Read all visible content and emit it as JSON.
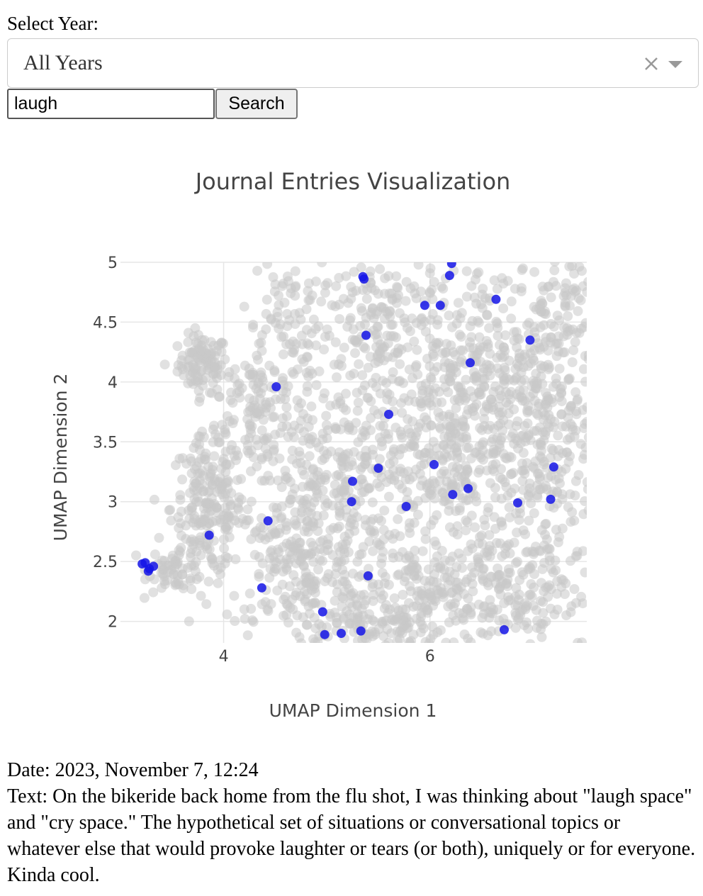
{
  "controls": {
    "year_label": "Select Year:",
    "year_selected": "All Years",
    "search_value": "laugh",
    "search_button_label": "Search"
  },
  "colors": {
    "background_points": "#c8c8c8",
    "highlight_points": "#1414e6",
    "grid": "#e6e6e6"
  },
  "chart_data": {
    "type": "scatter",
    "title": "Journal Entries Visualization",
    "xlabel": "UMAP Dimension 1",
    "ylabel": "UMAP Dimension 2",
    "xlim": [
      3.0,
      7.52
    ],
    "ylim": [
      1.82,
      5.0
    ],
    "xticks": [
      4,
      6
    ],
    "yticks": [
      2,
      2.5,
      3,
      3.5,
      4,
      4.5,
      5
    ],
    "grid": true,
    "background_series": {
      "name": "",
      "clusters": [
        {
          "cx": 3.8,
          "cy": 4.15,
          "sx": 0.12,
          "sy": 0.12,
          "n": 100
        },
        {
          "cx": 4.3,
          "cy": 3.8,
          "sx": 0.25,
          "sy": 0.3,
          "n": 140
        },
        {
          "cx": 3.85,
          "cy": 2.95,
          "sx": 0.18,
          "sy": 0.28,
          "n": 200
        },
        {
          "cx": 3.55,
          "cy": 2.45,
          "sx": 0.14,
          "sy": 0.1,
          "n": 60
        },
        {
          "cx": 4.7,
          "cy": 2.5,
          "sx": 0.35,
          "sy": 0.3,
          "n": 220
        },
        {
          "cx": 4.6,
          "cy": 4.55,
          "sx": 0.22,
          "sy": 0.25,
          "n": 80
        },
        {
          "cx": 5.05,
          "cy": 3.2,
          "sx": 0.35,
          "sy": 0.4,
          "n": 240
        },
        {
          "cx": 5.6,
          "cy": 4.4,
          "sx": 0.35,
          "sy": 0.35,
          "n": 220
        },
        {
          "cx": 5.9,
          "cy": 2.2,
          "sx": 0.45,
          "sy": 0.25,
          "n": 220
        },
        {
          "cx": 6.0,
          "cy": 3.4,
          "sx": 0.35,
          "sy": 0.4,
          "n": 260
        },
        {
          "cx": 6.65,
          "cy": 4.1,
          "sx": 0.4,
          "sy": 0.45,
          "n": 280
        },
        {
          "cx": 7.05,
          "cy": 3.5,
          "sx": 0.35,
          "sy": 0.4,
          "n": 240
        },
        {
          "cx": 6.8,
          "cy": 2.4,
          "sx": 0.4,
          "sy": 0.35,
          "n": 240
        },
        {
          "cx": 7.3,
          "cy": 4.6,
          "sx": 0.2,
          "sy": 0.25,
          "n": 100
        },
        {
          "cx": 5.3,
          "cy": 1.98,
          "sx": 0.3,
          "sy": 0.12,
          "n": 80
        }
      ]
    },
    "highlight_series": {
      "name": "",
      "x": [
        5.36,
        5.35,
        6.19,
        6.21,
        5.95,
        6.1,
        6.64,
        5.38,
        6.97,
        6.39,
        4.51,
        5.6,
        6.04,
        7.2,
        5.5,
        5.25,
        6.37,
        6.22,
        5.24,
        6.85,
        7.17,
        5.77,
        4.43,
        3.86,
        3.21,
        3.24,
        3.28,
        3.32,
        3.27,
        4.37,
        5.4,
        4.96,
        4.98,
        5.14,
        5.33,
        6.72
      ],
      "y": [
        4.86,
        4.88,
        4.89,
        4.99,
        4.64,
        4.64,
        4.69,
        4.39,
        4.35,
        4.16,
        3.96,
        3.73,
        3.31,
        3.29,
        3.28,
        3.17,
        3.11,
        3.06,
        3.0,
        2.99,
        3.02,
        2.96,
        2.84,
        2.72,
        2.48,
        2.49,
        2.44,
        2.46,
        2.42,
        2.28,
        2.38,
        2.08,
        1.89,
        1.9,
        1.92,
        1.93
      ]
    }
  },
  "entry": {
    "date_line": "Date: 2023, November 7, 12:24",
    "text_line": "Text: On the bikeride back home from the flu shot, I was thinking about \"laugh space\" and \"cry space.\" The hypothetical set of situations or conversational topics or whatever else that would provoke laughter or tears (or both), uniquely or for everyone. Kinda cool."
  }
}
